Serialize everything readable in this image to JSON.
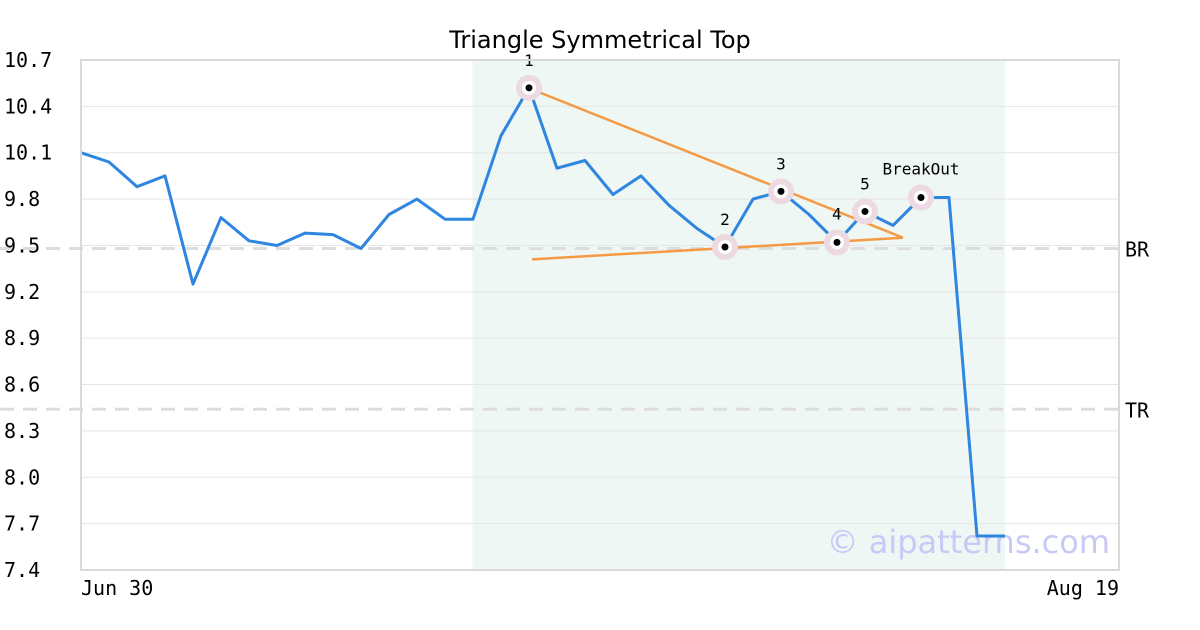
{
  "chart_data": {
    "type": "line",
    "title": "Triangle Symmetrical Top",
    "watermark": "© aipatterns.com",
    "x_tick_labels": [
      "Jun 30",
      "Aug 19"
    ],
    "y_ticks": [
      "10.7",
      "10.4",
      "10.1",
      "9.8",
      "9.5",
      "9.2",
      "8.9",
      "8.6",
      "8.3",
      "8.0",
      "7.7",
      "7.4"
    ],
    "ylim": [
      7.4,
      10.7
    ],
    "grid": true,
    "series": [
      {
        "color": "#2f86e0",
        "values": [
          10.1,
          10.04,
          9.88,
          9.95,
          9.25,
          9.68,
          9.53,
          9.5,
          9.58,
          9.57,
          9.48,
          9.7,
          9.8,
          9.67,
          9.67,
          10.21,
          10.52,
          10.0,
          10.05,
          9.83,
          9.95,
          9.76,
          9.61,
          9.49,
          9.8,
          9.85,
          9.7,
          9.52,
          9.72,
          9.63,
          9.81,
          9.81,
          7.62,
          7.62
        ]
      }
    ],
    "shaded_region": {
      "start_index": 14,
      "end_index": 33,
      "color": "#eef7f3"
    },
    "reference_lines": [
      {
        "label": "BR",
        "value": 9.48
      },
      {
        "label": "TR",
        "value": 8.44
      }
    ],
    "pattern_points": [
      {
        "label": "1",
        "index": 16,
        "value": 10.52
      },
      {
        "label": "2",
        "index": 23,
        "value": 9.49
      },
      {
        "label": "3",
        "index": 25,
        "value": 9.85
      },
      {
        "label": "4",
        "index": 27,
        "value": 9.52
      },
      {
        "label": "5",
        "index": 28,
        "value": 9.72
      },
      {
        "label": "BreakOut",
        "index": 30,
        "value": 9.81
      }
    ],
    "trend_lines": [
      {
        "from": [
          16,
          10.51
        ],
        "to": [
          29,
          9.55
        ],
        "color": "#f59a43"
      },
      {
        "from": [
          16,
          9.41
        ],
        "to": [
          29,
          9.55
        ],
        "color": "#f59a43"
      }
    ],
    "colors": {
      "series": "#2f86e0",
      "trend": "#f59a43",
      "shade": "#eef7f3",
      "marker_ring": "#ecd9e2",
      "grid": "#e6e6e6",
      "axis": "#d9d9d9",
      "ref_line": "#dddddd"
    }
  }
}
